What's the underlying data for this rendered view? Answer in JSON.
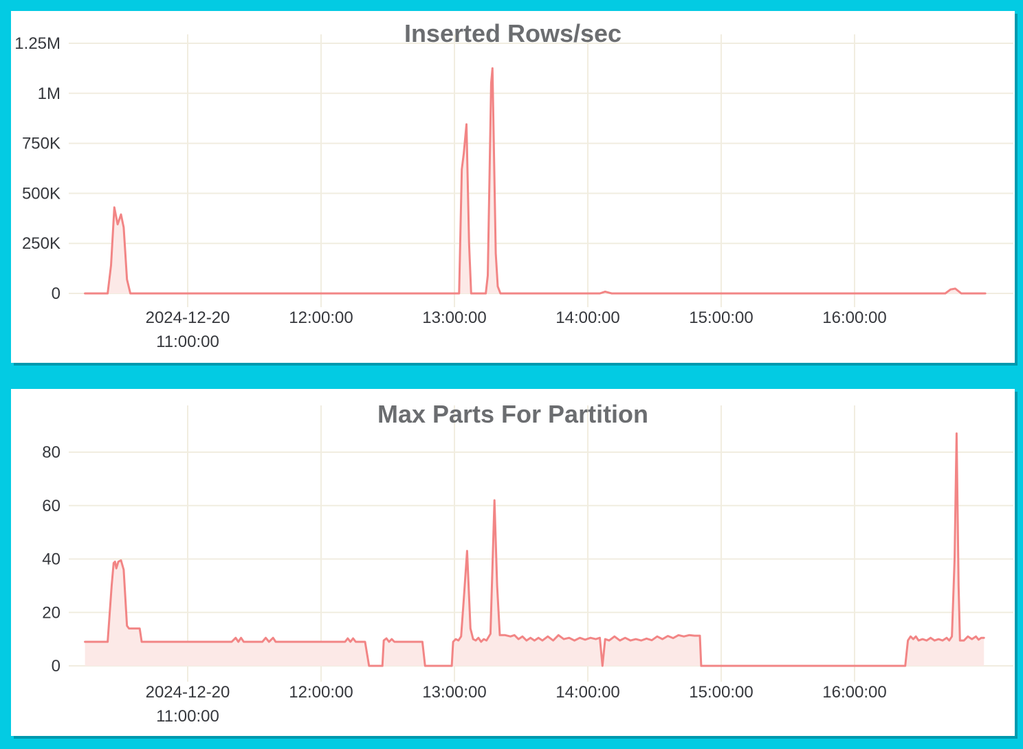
{
  "page": {
    "background_color": "#03cbe3",
    "panel_shadow_color": "#0099ae",
    "grid_color": "#f1ede0",
    "axis_label_color": "#36383d",
    "title_color": "#6b6d70",
    "line_color": "#f28585",
    "fill_color": "#fce9e7"
  },
  "chart_data": [
    {
      "type": "area",
      "title": "Inserted Rows/sec",
      "xlabel": "",
      "ylabel": "",
      "legend": "none",
      "grid": "on",
      "x_unit": "time of day 2024-12-20, decimal hours",
      "xlim": [
        10.23,
        16.98
      ],
      "ylim": [
        0,
        1250000
      ],
      "x_ticks": [
        {
          "t": 11,
          "lines": [
            "2024-12-20",
            "11:00:00"
          ]
        },
        {
          "t": 12,
          "lines": [
            "12:00:00"
          ]
        },
        {
          "t": 13,
          "lines": [
            "13:00:00"
          ]
        },
        {
          "t": 14,
          "lines": [
            "14:00:00"
          ]
        },
        {
          "t": 15,
          "lines": [
            "15:00:00"
          ]
        },
        {
          "t": 16,
          "lines": [
            "16:00:00"
          ]
        }
      ],
      "y_ticks": [
        {
          "v": 0,
          "label": "0"
        },
        {
          "v": 250000,
          "label": "250K"
        },
        {
          "v": 500000,
          "label": "500K"
        },
        {
          "v": 750000,
          "label": "750K"
        },
        {
          "v": 1000000,
          "label": "1M"
        },
        {
          "v": 1250000,
          "label": "1.25M"
        }
      ],
      "points": [
        [
          10.23,
          0
        ],
        [
          10.4,
          0
        ],
        [
          10.425,
          140000
        ],
        [
          10.45,
          430000
        ],
        [
          10.475,
          345000
        ],
        [
          10.5,
          395000
        ],
        [
          10.52,
          330000
        ],
        [
          10.545,
          70000
        ],
        [
          10.57,
          0
        ],
        [
          12.3,
          0
        ],
        [
          12.46,
          0
        ],
        [
          13.035,
          0
        ],
        [
          13.055,
          620000
        ],
        [
          13.07,
          700000
        ],
        [
          13.09,
          845000
        ],
        [
          13.11,
          250000
        ],
        [
          13.125,
          0
        ],
        [
          13.235,
          0
        ],
        [
          13.25,
          90000
        ],
        [
          13.275,
          1050000
        ],
        [
          13.285,
          1125000
        ],
        [
          13.31,
          200000
        ],
        [
          13.325,
          35000
        ],
        [
          13.345,
          0
        ],
        [
          14.09,
          0
        ],
        [
          14.13,
          9000
        ],
        [
          14.18,
          0
        ],
        [
          16.68,
          0
        ],
        [
          16.72,
          20000
        ],
        [
          16.755,
          24000
        ],
        [
          16.8,
          0
        ],
        [
          16.98,
          0
        ]
      ]
    },
    {
      "type": "area",
      "title": "Max Parts For Partition",
      "xlabel": "",
      "ylabel": "",
      "legend": "none",
      "grid": "on",
      "x_unit": "time of day 2024-12-20, decimal hours",
      "xlim": [
        10.23,
        16.98
      ],
      "ylim": [
        0,
        97
      ],
      "x_ticks": [
        {
          "t": 11,
          "lines": [
            "2024-12-20",
            "11:00:00"
          ]
        },
        {
          "t": 12,
          "lines": [
            "12:00:00"
          ]
        },
        {
          "t": 13,
          "lines": [
            "13:00:00"
          ]
        },
        {
          "t": 14,
          "lines": [
            "14:00:00"
          ]
        },
        {
          "t": 15,
          "lines": [
            "15:00:00"
          ]
        },
        {
          "t": 16,
          "lines": [
            "16:00:00"
          ]
        }
      ],
      "y_ticks": [
        {
          "v": 0,
          "label": "0"
        },
        {
          "v": 20,
          "label": "20"
        },
        {
          "v": 40,
          "label": "40"
        },
        {
          "v": 60,
          "label": "60"
        },
        {
          "v": 80,
          "label": "80"
        }
      ],
      "points": [
        [
          10.23,
          9
        ],
        [
          10.4,
          9
        ],
        [
          10.43,
          30
        ],
        [
          10.445,
          38.5
        ],
        [
          10.455,
          39
        ],
        [
          10.465,
          36.5
        ],
        [
          10.48,
          39
        ],
        [
          10.5,
          39.5
        ],
        [
          10.52,
          36
        ],
        [
          10.545,
          15
        ],
        [
          10.56,
          14
        ],
        [
          10.64,
          14
        ],
        [
          10.655,
          9
        ],
        [
          11.33,
          9
        ],
        [
          11.36,
          10.5
        ],
        [
          11.38,
          9
        ],
        [
          11.4,
          10.5
        ],
        [
          11.42,
          9
        ],
        [
          11.56,
          9
        ],
        [
          11.585,
          10.5
        ],
        [
          11.61,
          9
        ],
        [
          11.64,
          10.5
        ],
        [
          11.66,
          9
        ],
        [
          12.18,
          9
        ],
        [
          12.2,
          10.3
        ],
        [
          12.22,
          9
        ],
        [
          12.24,
          10.3
        ],
        [
          12.26,
          9
        ],
        [
          12.33,
          9
        ],
        [
          12.36,
          0
        ],
        [
          12.46,
          0
        ],
        [
          12.47,
          9.5
        ],
        [
          12.49,
          10.3
        ],
        [
          12.51,
          9
        ],
        [
          12.53,
          10
        ],
        [
          12.55,
          9
        ],
        [
          12.76,
          9
        ],
        [
          12.78,
          0
        ],
        [
          12.98,
          0
        ],
        [
          12.99,
          9
        ],
        [
          13.01,
          10
        ],
        [
          13.03,
          9.5
        ],
        [
          13.05,
          11
        ],
        [
          13.07,
          25
        ],
        [
          13.095,
          43
        ],
        [
          13.12,
          14
        ],
        [
          13.14,
          10
        ],
        [
          13.16,
          9.5
        ],
        [
          13.18,
          10.5
        ],
        [
          13.2,
          9
        ],
        [
          13.22,
          10
        ],
        [
          13.24,
          9.5
        ],
        [
          13.27,
          12
        ],
        [
          13.3,
          62
        ],
        [
          13.32,
          30
        ],
        [
          13.34,
          11.5
        ],
        [
          13.38,
          11.5
        ],
        [
          13.42,
          11
        ],
        [
          13.45,
          11.5
        ],
        [
          13.48,
          10
        ],
        [
          13.51,
          11
        ],
        [
          13.54,
          9.5
        ],
        [
          13.57,
          10.5
        ],
        [
          13.6,
          9.5
        ],
        [
          13.63,
          10.5
        ],
        [
          13.66,
          9.5
        ],
        [
          13.7,
          11
        ],
        [
          13.74,
          9.5
        ],
        [
          13.78,
          11.5
        ],
        [
          13.82,
          10
        ],
        [
          13.86,
          10.5
        ],
        [
          13.9,
          9.5
        ],
        [
          13.94,
          10.5
        ],
        [
          13.98,
          9.8
        ],
        [
          14.02,
          10.5
        ],
        [
          14.06,
          10
        ],
        [
          14.09,
          10.5
        ],
        [
          14.11,
          0
        ],
        [
          14.13,
          10
        ],
        [
          14.16,
          9.5
        ],
        [
          14.2,
          11
        ],
        [
          14.24,
          9.5
        ],
        [
          14.28,
          10.5
        ],
        [
          14.32,
          9.5
        ],
        [
          14.36,
          10
        ],
        [
          14.4,
          9.5
        ],
        [
          14.44,
          10.2
        ],
        [
          14.48,
          9.6
        ],
        [
          14.52,
          11
        ],
        [
          14.56,
          10
        ],
        [
          14.6,
          11.2
        ],
        [
          14.64,
          10.4
        ],
        [
          14.68,
          11.5
        ],
        [
          14.72,
          11
        ],
        [
          14.76,
          11.5
        ],
        [
          14.8,
          11.3
        ],
        [
          14.84,
          11.3
        ],
        [
          14.85,
          0
        ],
        [
          16.38,
          0
        ],
        [
          16.4,
          9.5
        ],
        [
          16.42,
          11
        ],
        [
          16.44,
          10
        ],
        [
          16.46,
          11
        ],
        [
          16.48,
          9.5
        ],
        [
          16.51,
          10
        ],
        [
          16.54,
          9.5
        ],
        [
          16.57,
          10.5
        ],
        [
          16.6,
          9.5
        ],
        [
          16.63,
          10
        ],
        [
          16.66,
          9.5
        ],
        [
          16.69,
          10.5
        ],
        [
          16.71,
          9.5
        ],
        [
          16.73,
          11
        ],
        [
          16.75,
          40
        ],
        [
          16.765,
          87
        ],
        [
          16.78,
          30
        ],
        [
          16.79,
          9.5
        ],
        [
          16.82,
          9.5
        ],
        [
          16.85,
          11
        ],
        [
          16.88,
          10
        ],
        [
          16.91,
          11
        ],
        [
          16.93,
          9.8
        ],
        [
          16.95,
          10.5
        ],
        [
          16.97,
          10.5
        ]
      ]
    }
  ]
}
